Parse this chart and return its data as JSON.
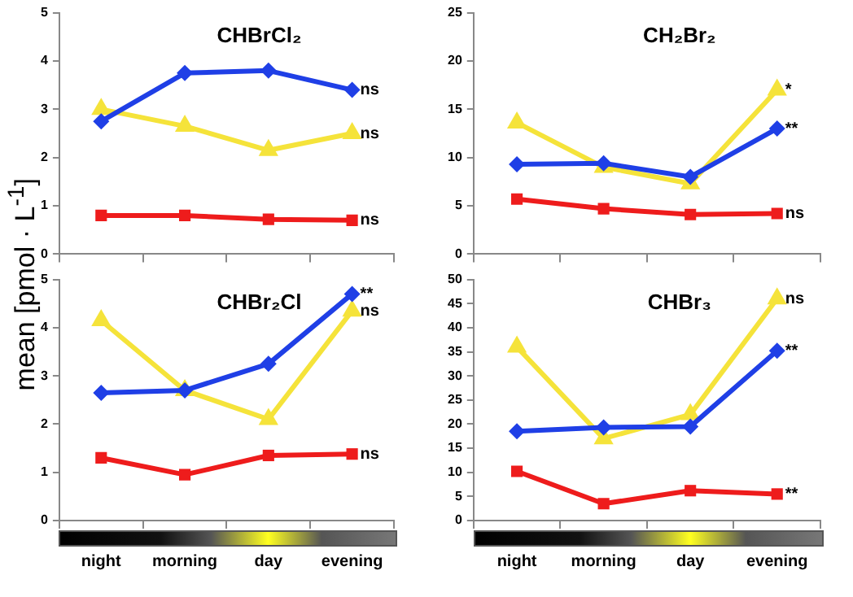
{
  "chart_data": [
    {
      "type": "line",
      "title": "CHBrCl₂",
      "ylabel": "mean [pmol · L$^{-1}$]",
      "categories": [
        "night",
        "morning",
        "day",
        "evening"
      ],
      "ylim": [
        0,
        5
      ],
      "yticks": [
        0,
        1,
        2,
        3,
        4,
        5
      ],
      "tick_labels": "y",
      "grid": false,
      "legend": false,
      "series": [
        {
          "color": "#1f3fe6",
          "marker": "diamond",
          "values": [
            2.75,
            3.75,
            3.8,
            3.4
          ]
        },
        {
          "color": "#f5e33a",
          "marker": "triangle",
          "values": [
            3.0,
            2.65,
            2.15,
            2.5
          ]
        },
        {
          "color": "#ee1c1c",
          "marker": "square",
          "values": [
            0.8,
            0.8,
            0.72,
            0.7
          ]
        }
      ],
      "annotations": [
        {
          "text": "ns",
          "x": "evening",
          "y": 3.4
        },
        {
          "text": "ns",
          "x": "evening",
          "y": 2.5
        },
        {
          "text": "ns",
          "x": "evening",
          "y": 0.7
        }
      ]
    },
    {
      "type": "line",
      "title": "CH₂Br₂",
      "categories": [
        "night",
        "morning",
        "day",
        "evening"
      ],
      "ylim": [
        0,
        25
      ],
      "yticks": [
        0,
        5,
        10,
        15,
        20,
        25
      ],
      "tick_labels": "y",
      "grid": false,
      "legend": false,
      "series": [
        {
          "color": "#1f3fe6",
          "marker": "diamond",
          "values": [
            9.3,
            9.4,
            8.0,
            13.0
          ]
        },
        {
          "color": "#f5e33a",
          "marker": "triangle",
          "values": [
            13.6,
            9.0,
            7.3,
            17.0
          ]
        },
        {
          "color": "#ee1c1c",
          "marker": "square",
          "values": [
            5.7,
            4.7,
            4.1,
            4.2
          ]
        }
      ],
      "annotations": [
        {
          "text": "*",
          "x": "evening",
          "y": 17.0
        },
        {
          "text": "**",
          "x": "evening",
          "y": 13.0
        },
        {
          "text": "ns",
          "x": "evening",
          "y": 4.2
        }
      ]
    },
    {
      "type": "line",
      "title": "CHBr₂Cl",
      "categories": [
        "night",
        "morning",
        "day",
        "evening"
      ],
      "ylim": [
        0,
        5
      ],
      "yticks": [
        0,
        1,
        2,
        3,
        4,
        5
      ],
      "grid": false,
      "legend": false,
      "series": [
        {
          "color": "#1f3fe6",
          "marker": "diamond",
          "values": [
            2.65,
            2.7,
            3.25,
            4.7
          ]
        },
        {
          "color": "#f5e33a",
          "marker": "triangle",
          "values": [
            4.15,
            2.7,
            2.1,
            4.35
          ]
        },
        {
          "color": "#ee1c1c",
          "marker": "square",
          "values": [
            1.3,
            0.95,
            1.35,
            1.38
          ]
        }
      ],
      "annotations": [
        {
          "text": "**",
          "x": "evening",
          "y": 4.7
        },
        {
          "text": "ns",
          "x": "evening",
          "y": 4.35
        },
        {
          "text": "ns",
          "x": "evening",
          "y": 1.38
        }
      ]
    },
    {
      "type": "line",
      "title": "CHBr₃",
      "categories": [
        "night",
        "morning",
        "day",
        "evening"
      ],
      "ylim": [
        0,
        50
      ],
      "yticks": [
        0,
        5,
        10,
        15,
        20,
        25,
        30,
        35,
        40,
        45,
        50
      ],
      "grid": false,
      "legend": false,
      "series": [
        {
          "color": "#1f3fe6",
          "marker": "diamond",
          "values": [
            18.5,
            19.3,
            19.5,
            35.2
          ]
        },
        {
          "color": "#f5e33a",
          "marker": "triangle",
          "values": [
            36,
            17,
            22,
            46
          ]
        },
        {
          "color": "#ee1c1c",
          "marker": "square",
          "values": [
            10.2,
            3.5,
            6.2,
            5.5
          ]
        }
      ],
      "annotations": [
        {
          "text": "ns",
          "x": "evening",
          "y": 46
        },
        {
          "text": "**",
          "x": "evening",
          "y": 35.2
        },
        {
          "text": "**",
          "x": "evening",
          "y": 5.5
        }
      ]
    }
  ]
}
